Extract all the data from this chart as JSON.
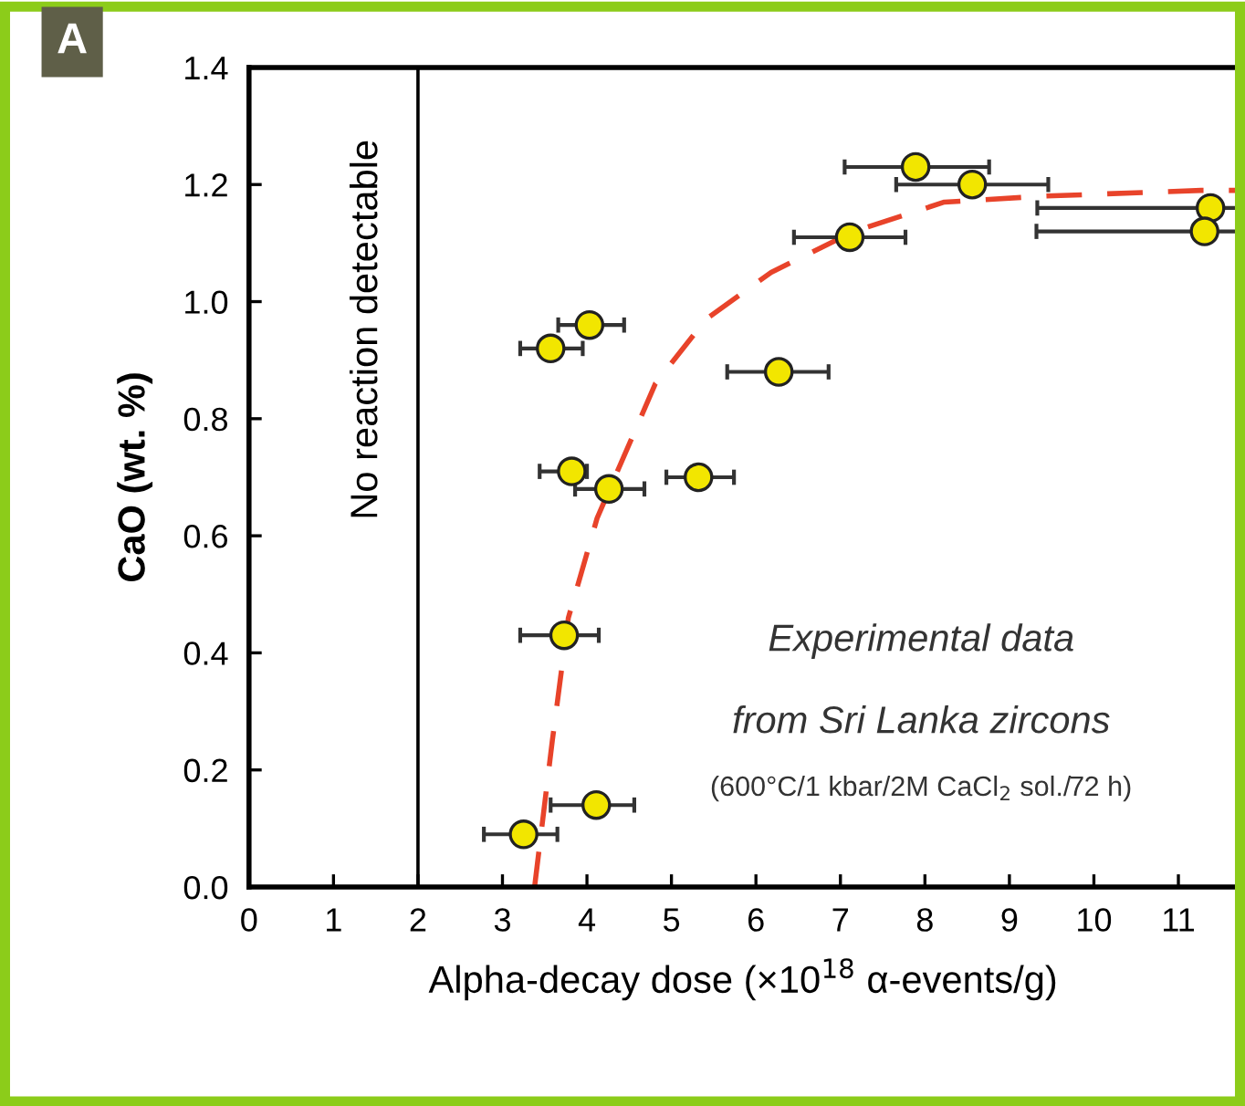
{
  "chart_data": {
    "type": "scatter",
    "xlabel": "Alpha-decay dose (×10$^{18}$ α-events/g)",
    "ylabel": "CaO (wt. %)",
    "annotations": [
      "A",
      "Experimental data",
      "from Sri Lanka zircons",
      "(600°C/1 kbar/2M CaCl$_{2}$ sol./72 h)"
    ],
    "xlim": [
      0,
      11.7
    ],
    "ylim": [
      0,
      1.4
    ],
    "xticks": [
      0,
      1,
      2,
      3,
      4,
      5,
      6,
      7,
      8,
      9,
      10,
      11
    ],
    "yticks": [
      {
        "value": 0,
        "label": "0.0"
      },
      {
        "value": 0.2,
        "label": "0.2"
      },
      {
        "value": 0.4,
        "label": "0.4"
      },
      {
        "value": 0.6,
        "label": "0.6"
      },
      {
        "value": 0.8,
        "label": "0.8"
      },
      {
        "value": 1.0,
        "label": "1.0"
      },
      {
        "value": 1.2,
        "label": "1.2"
      },
      {
        "value": 1.4,
        "label": "1.4"
      }
    ],
    "grid": false,
    "ref_lines": [
      {
        "axis": "x",
        "value": 2,
        "label": "No reaction detectable",
        "color": "#000000"
      }
    ],
    "series": [
      {
        "marker": "circle",
        "color": "#f2e600",
        "x": [
          3.25,
          4.11,
          3.73,
          3.82,
          4.26,
          5.32,
          3.57,
          4.03,
          6.27,
          7.11,
          7.89,
          8.56,
          11.38,
          11.31
        ],
        "values": [
          0.09,
          0.14,
          0.43,
          0.71,
          0.68,
          0.7,
          0.92,
          0.96,
          0.88,
          1.11,
          1.23,
          1.2,
          1.16,
          1.12
        ],
        "xerrors": [
          [
            2.78,
            3.65
          ],
          [
            3.57,
            4.56
          ],
          [
            3.21,
            4.14
          ],
          [
            3.44,
            4.0
          ],
          [
            3.86,
            4.68
          ],
          [
            4.94,
            5.74
          ],
          [
            3.21,
            3.95
          ],
          [
            3.66,
            4.44
          ],
          [
            5.66,
            6.86
          ],
          [
            6.45,
            7.77
          ],
          [
            7.05,
            8.76
          ],
          [
            7.66,
            9.46
          ],
          [
            9.33,
            11.7
          ],
          [
            9.32,
            11.7
          ]
        ]
      },
      {
        "type": "line",
        "color": "#e8432a",
        "line_style": "dashed",
        "marker": "none",
        "x": [
          3.38,
          3.59,
          3.78,
          4.12,
          4.81,
          5.41,
          6.18,
          7.16,
          8.23,
          9.37,
          11.27,
          11.7
        ],
        "values": [
          0.0,
          0.25,
          0.46,
          0.63,
          0.86,
          0.97,
          1.05,
          1.12,
          1.17,
          1.18,
          1.19,
          1.19
        ]
      }
    ]
  }
}
